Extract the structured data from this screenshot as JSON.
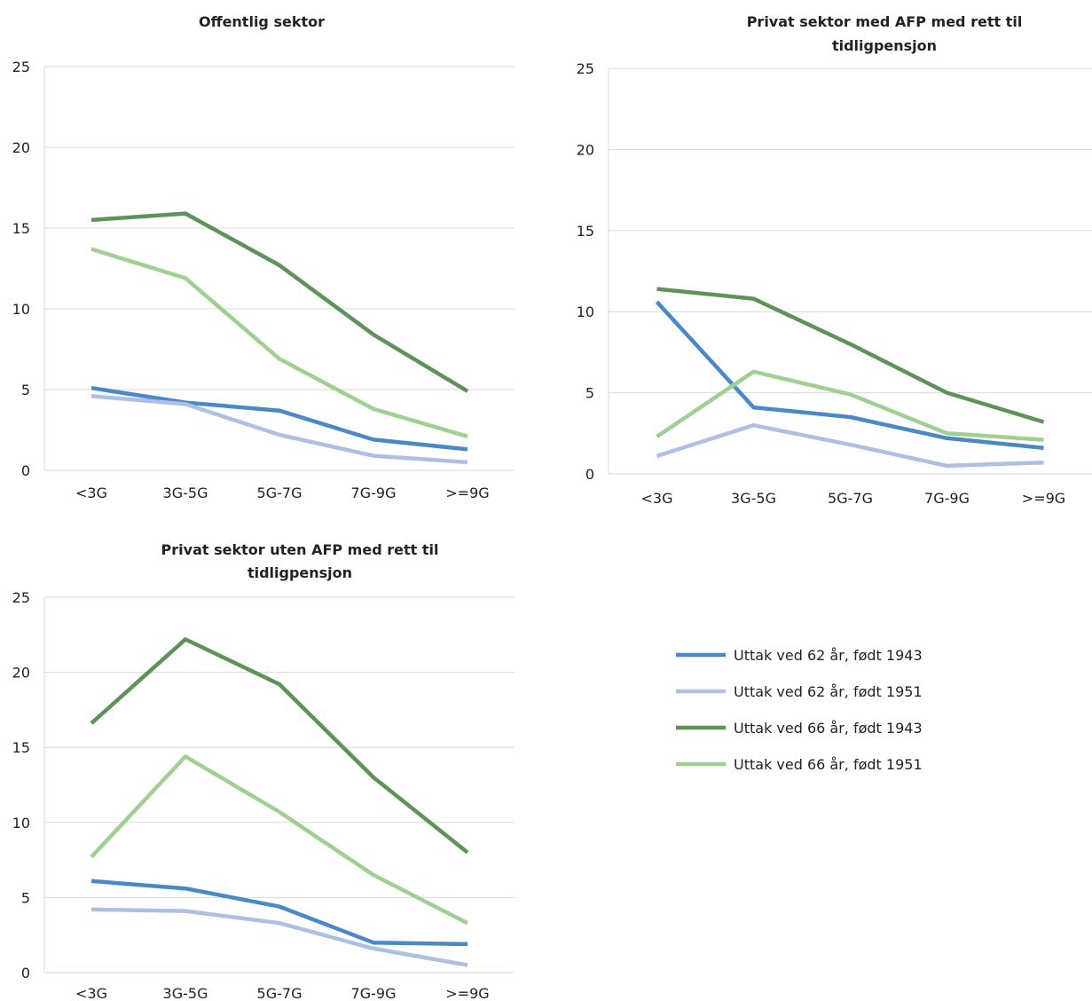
{
  "chart_data": [
    {
      "type": "line",
      "title_lines": [
        "Offentlig sektor"
      ],
      "categories": [
        "<3G",
        "3G-5G",
        "5G-7G",
        "7G-9G",
        ">=9G"
      ],
      "ylim": [
        0,
        25
      ],
      "yticks": [
        "0",
        "5",
        "10",
        "15",
        "20",
        "25"
      ],
      "grid": true,
      "series": [
        {
          "name": "Uttak ved 62 år, født 1943",
          "values": [
            5.1,
            4.2,
            3.7,
            1.9,
            1.3
          ]
        },
        {
          "name": "Uttak ved 62 år, født 1951",
          "values": [
            4.6,
            4.1,
            2.2,
            0.9,
            0.5
          ]
        },
        {
          "name": "Uttak ved 66 år, født 1943",
          "values": [
            15.5,
            15.9,
            12.7,
            8.4,
            4.9
          ]
        },
        {
          "name": "Uttak ved 66 år, født 1951",
          "values": [
            13.7,
            11.9,
            6.9,
            3.8,
            2.1
          ]
        }
      ]
    },
    {
      "type": "line",
      "title_lines": [
        "Privat sektor med AFP med rett til",
        "tidligpensjon"
      ],
      "categories": [
        "<3G",
        "3G-5G",
        "5G-7G",
        "7G-9G",
        ">=9G"
      ],
      "ylim": [
        0,
        25
      ],
      "yticks": [
        "0",
        "5",
        "10",
        "15",
        "20",
        "25"
      ],
      "grid": true,
      "series": [
        {
          "name": "Uttak ved 62 år, født 1943",
          "values": [
            10.6,
            4.1,
            3.5,
            2.2,
            1.6
          ]
        },
        {
          "name": "Uttak ved 62 år, født 1951",
          "values": [
            1.1,
            3.0,
            1.8,
            0.5,
            0.7
          ]
        },
        {
          "name": "Uttak ved 66 år, født 1943",
          "values": [
            11.4,
            10.8,
            8.0,
            5.0,
            3.2
          ]
        },
        {
          "name": "Uttak ved 66 år, født 1951",
          "values": [
            2.3,
            6.3,
            4.9,
            2.5,
            2.1
          ]
        }
      ]
    },
    {
      "type": "line",
      "title_lines": [
        "Privat sektor uten AFP med rett til",
        "tidligpensjon"
      ],
      "categories": [
        "<3G",
        "3G-5G",
        "5G-7G",
        "7G-9G",
        ">=9G"
      ],
      "ylim": [
        0,
        25
      ],
      "yticks": [
        "0",
        "5",
        "10",
        "15",
        "20",
        "25"
      ],
      "grid": true,
      "series": [
        {
          "name": "Uttak ved 62 år, født 1943",
          "values": [
            6.1,
            5.6,
            4.4,
            2.0,
            1.9
          ]
        },
        {
          "name": "Uttak ved 62 år, født 1951",
          "values": [
            4.2,
            4.1,
            3.3,
            1.6,
            0.5
          ]
        },
        {
          "name": "Uttak ved 66 år, født 1943",
          "values": [
            16.6,
            22.2,
            19.2,
            13.0,
            8.0
          ]
        },
        {
          "name": "Uttak ved 66 år, født 1951",
          "values": [
            7.7,
            14.4,
            10.7,
            6.5,
            3.3
          ]
        }
      ]
    }
  ],
  "legend": {
    "position": "right",
    "items": [
      {
        "label": "Uttak ved 62 år, født 1943",
        "color": "#4a88c7"
      },
      {
        "label": "Uttak ved 62 år, født 1951",
        "color": "#aebfe3"
      },
      {
        "label": "Uttak ved 66 år, født 1943",
        "color": "#5e9357"
      },
      {
        "label": "Uttak ved 66 år, født 1951",
        "color": "#9fcf91"
      }
    ]
  },
  "colors": {
    "gridline": "#d9d9d9",
    "axis": "#d9d9d9",
    "text": "#222222"
  }
}
